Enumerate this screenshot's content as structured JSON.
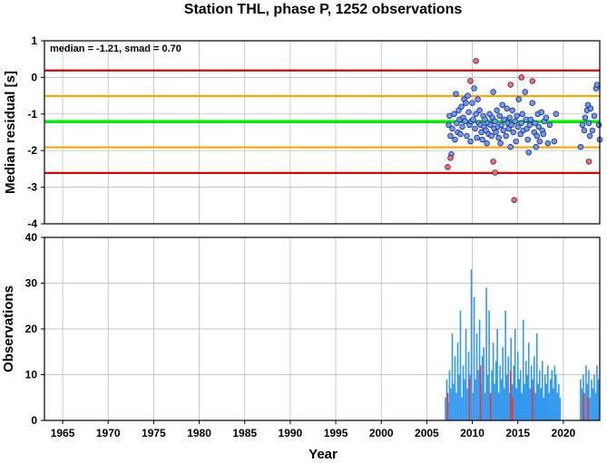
{
  "chart_data": [
    {
      "type": "scatter",
      "title": "Station THL, phase P, 1252 observations",
      "ylabel": "Median residual [s]",
      "annotation": "median = -1.21, smad = 0.70",
      "xlim": [
        1963,
        2024
      ],
      "ylim": [
        -4,
        1
      ],
      "yticks": [
        1,
        0,
        -1,
        -2,
        -3,
        -4
      ],
      "grid": true,
      "reference_lines": [
        {
          "name": "median",
          "y": -1.21,
          "color": "#00ee00"
        },
        {
          "name": "median + 1 smad",
          "y": -0.51,
          "color": "#ffa500"
        },
        {
          "name": "median - 1 smad",
          "y": -1.91,
          "color": "#ffa500"
        },
        {
          "name": "median + 2 smad",
          "y": 0.19,
          "color": "#e00000"
        },
        {
          "name": "median - 2 smad",
          "y": -2.61,
          "color": "#e00000"
        }
      ],
      "series": [
        {
          "color": "#6699ff",
          "points": [
            [
              2007.4,
              -1.3
            ],
            [
              2007.5,
              -1.05
            ],
            [
              2007.6,
              -1.6
            ],
            [
              2007.7,
              -2.1
            ],
            [
              2007.8,
              -1.4
            ],
            [
              2008.0,
              -1.0
            ],
            [
              2008.1,
              -1.7
            ],
            [
              2008.2,
              -0.45
            ],
            [
              2008.3,
              -1.25
            ],
            [
              2008.4,
              -1.5
            ],
            [
              2008.5,
              -0.9
            ],
            [
              2008.6,
              -1.15
            ],
            [
              2008.7,
              -1.55
            ],
            [
              2008.8,
              -0.8
            ],
            [
              2008.9,
              -1.35
            ],
            [
              2009.0,
              -1.1
            ],
            [
              2009.1,
              -0.6
            ],
            [
              2009.2,
              -1.2
            ],
            [
              2009.3,
              -0.7
            ],
            [
              2009.4,
              -1.6
            ],
            [
              2009.5,
              -0.5
            ],
            [
              2009.6,
              -0.95
            ],
            [
              2009.7,
              -1.3
            ],
            [
              2009.8,
              -1.75
            ],
            [
              2009.9,
              -1.2
            ],
            [
              2010.0,
              -0.7
            ],
            [
              2010.1,
              -1.15
            ],
            [
              2010.2,
              -0.3
            ],
            [
              2010.3,
              -1.4
            ],
            [
              2010.4,
              -1.0
            ],
            [
              2010.5,
              -1.65
            ],
            [
              2010.6,
              -0.6
            ],
            [
              2010.7,
              -1.25
            ],
            [
              2010.8,
              -0.9
            ],
            [
              2010.9,
              -1.3
            ],
            [
              2011.0,
              -1.5
            ],
            [
              2011.1,
              -1.7
            ],
            [
              2011.2,
              -1.05
            ],
            [
              2011.3,
              -1.35
            ],
            [
              2011.4,
              -1.15
            ],
            [
              2011.5,
              -1.45
            ],
            [
              2011.6,
              -1.8
            ],
            [
              2011.7,
              -1.25
            ],
            [
              2011.8,
              -1.55
            ],
            [
              2011.9,
              -1.0
            ],
            [
              2012.0,
              -1.3
            ],
            [
              2012.1,
              -1.6
            ],
            [
              2012.2,
              -1.1
            ],
            [
              2012.3,
              -0.4
            ],
            [
              2012.4,
              -1.4
            ],
            [
              2012.5,
              -1.2
            ],
            [
              2012.6,
              -1.5
            ],
            [
              2012.7,
              -0.9
            ],
            [
              2012.8,
              -1.35
            ],
            [
              2012.9,
              -1.65
            ],
            [
              2013.0,
              -1.05
            ],
            [
              2013.1,
              -1.8
            ],
            [
              2013.2,
              -1.3
            ],
            [
              2013.3,
              -0.75
            ],
            [
              2013.4,
              -1.45
            ],
            [
              2013.5,
              -1.15
            ],
            [
              2013.7,
              -1.6
            ],
            [
              2013.8,
              -0.85
            ],
            [
              2013.9,
              -1.25
            ],
            [
              2014.0,
              -1.4
            ],
            [
              2014.1,
              -1.1
            ],
            [
              2014.2,
              -1.9
            ],
            [
              2014.3,
              -1.3
            ],
            [
              2014.4,
              -0.9
            ],
            [
              2014.5,
              -1.5
            ],
            [
              2014.7,
              -1.2
            ],
            [
              2014.8,
              -1.75
            ],
            [
              2014.9,
              -1.05
            ],
            [
              2015.0,
              -1.35
            ],
            [
              2015.1,
              -0.6
            ],
            [
              2015.3,
              -1.55
            ],
            [
              2015.4,
              -1.25
            ],
            [
              2015.5,
              -1.0
            ],
            [
              2015.6,
              -1.45
            ],
            [
              2015.8,
              -0.4
            ],
            [
              2015.9,
              -1.15
            ],
            [
              2016.0,
              -1.4
            ],
            [
              2016.1,
              -1.7
            ],
            [
              2016.2,
              -2.05
            ],
            [
              2016.3,
              -1.3
            ],
            [
              2016.4,
              -1.15
            ],
            [
              2016.6,
              -0.7
            ],
            [
              2016.8,
              -1.5
            ],
            [
              2016.9,
              -1.25
            ],
            [
              2017.0,
              -1.9
            ],
            [
              2017.1,
              -1.6
            ],
            [
              2017.2,
              -1.0
            ],
            [
              2017.3,
              -1.35
            ],
            [
              2017.4,
              -1.75
            ],
            [
              2017.6,
              -0.95
            ],
            [
              2017.7,
              -1.45
            ],
            [
              2017.8,
              -1.55
            ],
            [
              2017.9,
              -1.2
            ],
            [
              2018.1,
              -1.1
            ],
            [
              2018.3,
              -1.8
            ],
            [
              2018.5,
              -1.3
            ],
            [
              2019.0,
              -1.75
            ],
            [
              2019.2,
              -1.0
            ],
            [
              2021.9,
              -1.9
            ],
            [
              2022.1,
              -1.3
            ],
            [
              2022.3,
              -1.45
            ],
            [
              2022.4,
              -1.1
            ],
            [
              2022.6,
              -0.9
            ],
            [
              2022.7,
              -0.75
            ],
            [
              2022.8,
              -1.25
            ],
            [
              2022.9,
              -1.6
            ],
            [
              2023.0,
              -0.85
            ],
            [
              2023.2,
              -1.45
            ],
            [
              2023.4,
              -1.05
            ],
            [
              2023.6,
              -0.3
            ],
            [
              2023.7,
              -0.2
            ],
            [
              2023.9,
              -1.3
            ],
            [
              2024.0,
              -1.7
            ]
          ]
        },
        {
          "color": "#ff6666",
          "points": [
            [
              2007.3,
              -2.45
            ],
            [
              2007.6,
              -2.2
            ],
            [
              2009.8,
              -0.1
            ],
            [
              2010.4,
              0.45
            ],
            [
              2012.3,
              -2.3
            ],
            [
              2012.5,
              -2.6
            ],
            [
              2014.2,
              -0.2
            ],
            [
              2014.6,
              -3.35
            ],
            [
              2015.4,
              0.0
            ],
            [
              2016.6,
              -0.1
            ],
            [
              2022.8,
              -2.3
            ]
          ]
        }
      ]
    },
    {
      "type": "bar",
      "xlabel": "Year",
      "ylabel": "Observations",
      "xlim": [
        1963,
        2024
      ],
      "ylim": [
        0,
        40
      ],
      "xticks": [
        1965,
        1970,
        1975,
        1980,
        1985,
        1990,
        1995,
        2000,
        2005,
        2010,
        2015,
        2020
      ],
      "yticks": [
        0,
        10,
        20,
        30,
        40
      ],
      "grid": true,
      "series": [
        {
          "color": "#3399ee",
          "x": [
            2007.05,
            2007.2,
            2007.35,
            2007.5,
            2007.65,
            2007.8,
            2007.95,
            2008.1,
            2008.25,
            2008.4,
            2008.55,
            2008.7,
            2008.85,
            2009.0,
            2009.15,
            2009.3,
            2009.45,
            2009.6,
            2009.75,
            2009.9,
            2010.05,
            2010.2,
            2010.35,
            2010.5,
            2010.65,
            2010.8,
            2010.95,
            2011.1,
            2011.25,
            2011.4,
            2011.55,
            2011.7,
            2011.85,
            2012.0,
            2012.15,
            2012.3,
            2012.45,
            2012.6,
            2012.75,
            2012.9,
            2013.05,
            2013.2,
            2013.35,
            2013.5,
            2013.65,
            2013.8,
            2013.95,
            2014.1,
            2014.25,
            2014.4,
            2014.55,
            2014.7,
            2014.85,
            2015.0,
            2015.15,
            2015.3,
            2015.45,
            2015.6,
            2015.75,
            2015.9,
            2016.05,
            2016.2,
            2016.35,
            2016.5,
            2016.65,
            2016.8,
            2016.95,
            2017.1,
            2017.25,
            2017.4,
            2017.55,
            2017.7,
            2017.85,
            2018.0,
            2018.15,
            2018.3,
            2018.45,
            2018.6,
            2018.75,
            2018.9,
            2019.05,
            2019.2,
            2019.35,
            2019.5,
            2019.65,
            2021.9,
            2022.05,
            2022.2,
            2022.35,
            2022.5,
            2022.65,
            2022.8,
            2022.95,
            2023.1,
            2023.25,
            2023.4,
            2023.55,
            2023.7,
            2023.85,
            2024.0
          ],
          "values": [
            5,
            9,
            4,
            11,
            7,
            19,
            8,
            14,
            6,
            17,
            10,
            24,
            5,
            12,
            9,
            20,
            7,
            15,
            10,
            33,
            6,
            27,
            9,
            19,
            11,
            22,
            8,
            14,
            16,
            6,
            29,
            10,
            24,
            5,
            11,
            17,
            8,
            13,
            20,
            6,
            12,
            9,
            16,
            7,
            24,
            10,
            14,
            6,
            18,
            8,
            12,
            20,
            7,
            15,
            9,
            11,
            6,
            22,
            8,
            13,
            10,
            17,
            7,
            12,
            9,
            14,
            6,
            19,
            8,
            11,
            7,
            13,
            5,
            10,
            8,
            12,
            6,
            9,
            11,
            7,
            12,
            10,
            6,
            8,
            5,
            9,
            7,
            10,
            6,
            12,
            8,
            11,
            5,
            9,
            7,
            10,
            6,
            12,
            8,
            9
          ]
        },
        {
          "color": "#ee3333",
          "x": [
            2007.3,
            2009.7,
            2010.9,
            2012.0,
            2014.2,
            2014.4,
            2016.6,
            2022.2,
            2022.7
          ],
          "values": [
            6,
            9,
            12,
            6,
            11,
            5,
            7,
            6,
            5
          ]
        }
      ]
    }
  ]
}
